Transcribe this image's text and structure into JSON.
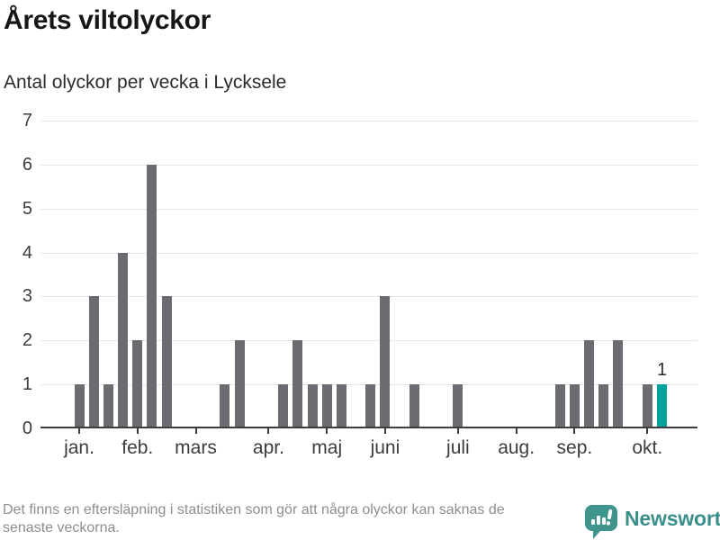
{
  "header": {
    "title": "Årets viltolyckor",
    "subtitle": "Antal olyckor per vecka i Lycksele"
  },
  "chart_data": {
    "type": "bar",
    "title": "Årets viltolyckor",
    "subtitle": "Antal olyckor per vecka i Lycksele",
    "xlabel": "",
    "ylabel": "",
    "ylim": [
      0,
      7
    ],
    "yticks": [
      0,
      1,
      2,
      3,
      4,
      5,
      6,
      7
    ],
    "grid": true,
    "unit": "olyckor per vecka",
    "values": [
      1,
      3,
      1,
      4,
      2,
      6,
      3,
      0,
      0,
      0,
      1,
      2,
      0,
      0,
      1,
      2,
      1,
      1,
      1,
      0,
      1,
      3,
      0,
      1,
      0,
      0,
      1,
      0,
      0,
      0,
      0,
      0,
      0,
      1,
      1,
      2,
      1,
      2,
      0,
      1,
      1
    ],
    "highlight_index": 40,
    "annotation": {
      "text": "1",
      "bar_index": 40
    },
    "month_ticks": [
      {
        "label": "jan.",
        "week_index": 0
      },
      {
        "label": "feb.",
        "week_index": 4
      },
      {
        "label": "mars",
        "week_index": 8
      },
      {
        "label": "apr.",
        "week_index": 13
      },
      {
        "label": "maj",
        "week_index": 17
      },
      {
        "label": "juni",
        "week_index": 21
      },
      {
        "label": "juli",
        "week_index": 26
      },
      {
        "label": "aug.",
        "week_index": 30
      },
      {
        "label": "sep.",
        "week_index": 34
      },
      {
        "label": "okt.",
        "week_index": 39
      }
    ],
    "colors": {
      "bar": "#6b6b71",
      "highlight": "#00a39b",
      "grid": "#e8e8e8",
      "axis": "#3c3c3e",
      "tick_label": "#3d3d3d"
    }
  },
  "footer": {
    "disclaimer_lines": {
      "0": "Det finns en eftersläpning i statistiken som gör att några olyckor kan saknas de",
      "1": "senaste veckorna."
    },
    "brand": "Newsworthy",
    "brand_color": "#3a8f8a",
    "logo_color": "#3f948d"
  }
}
